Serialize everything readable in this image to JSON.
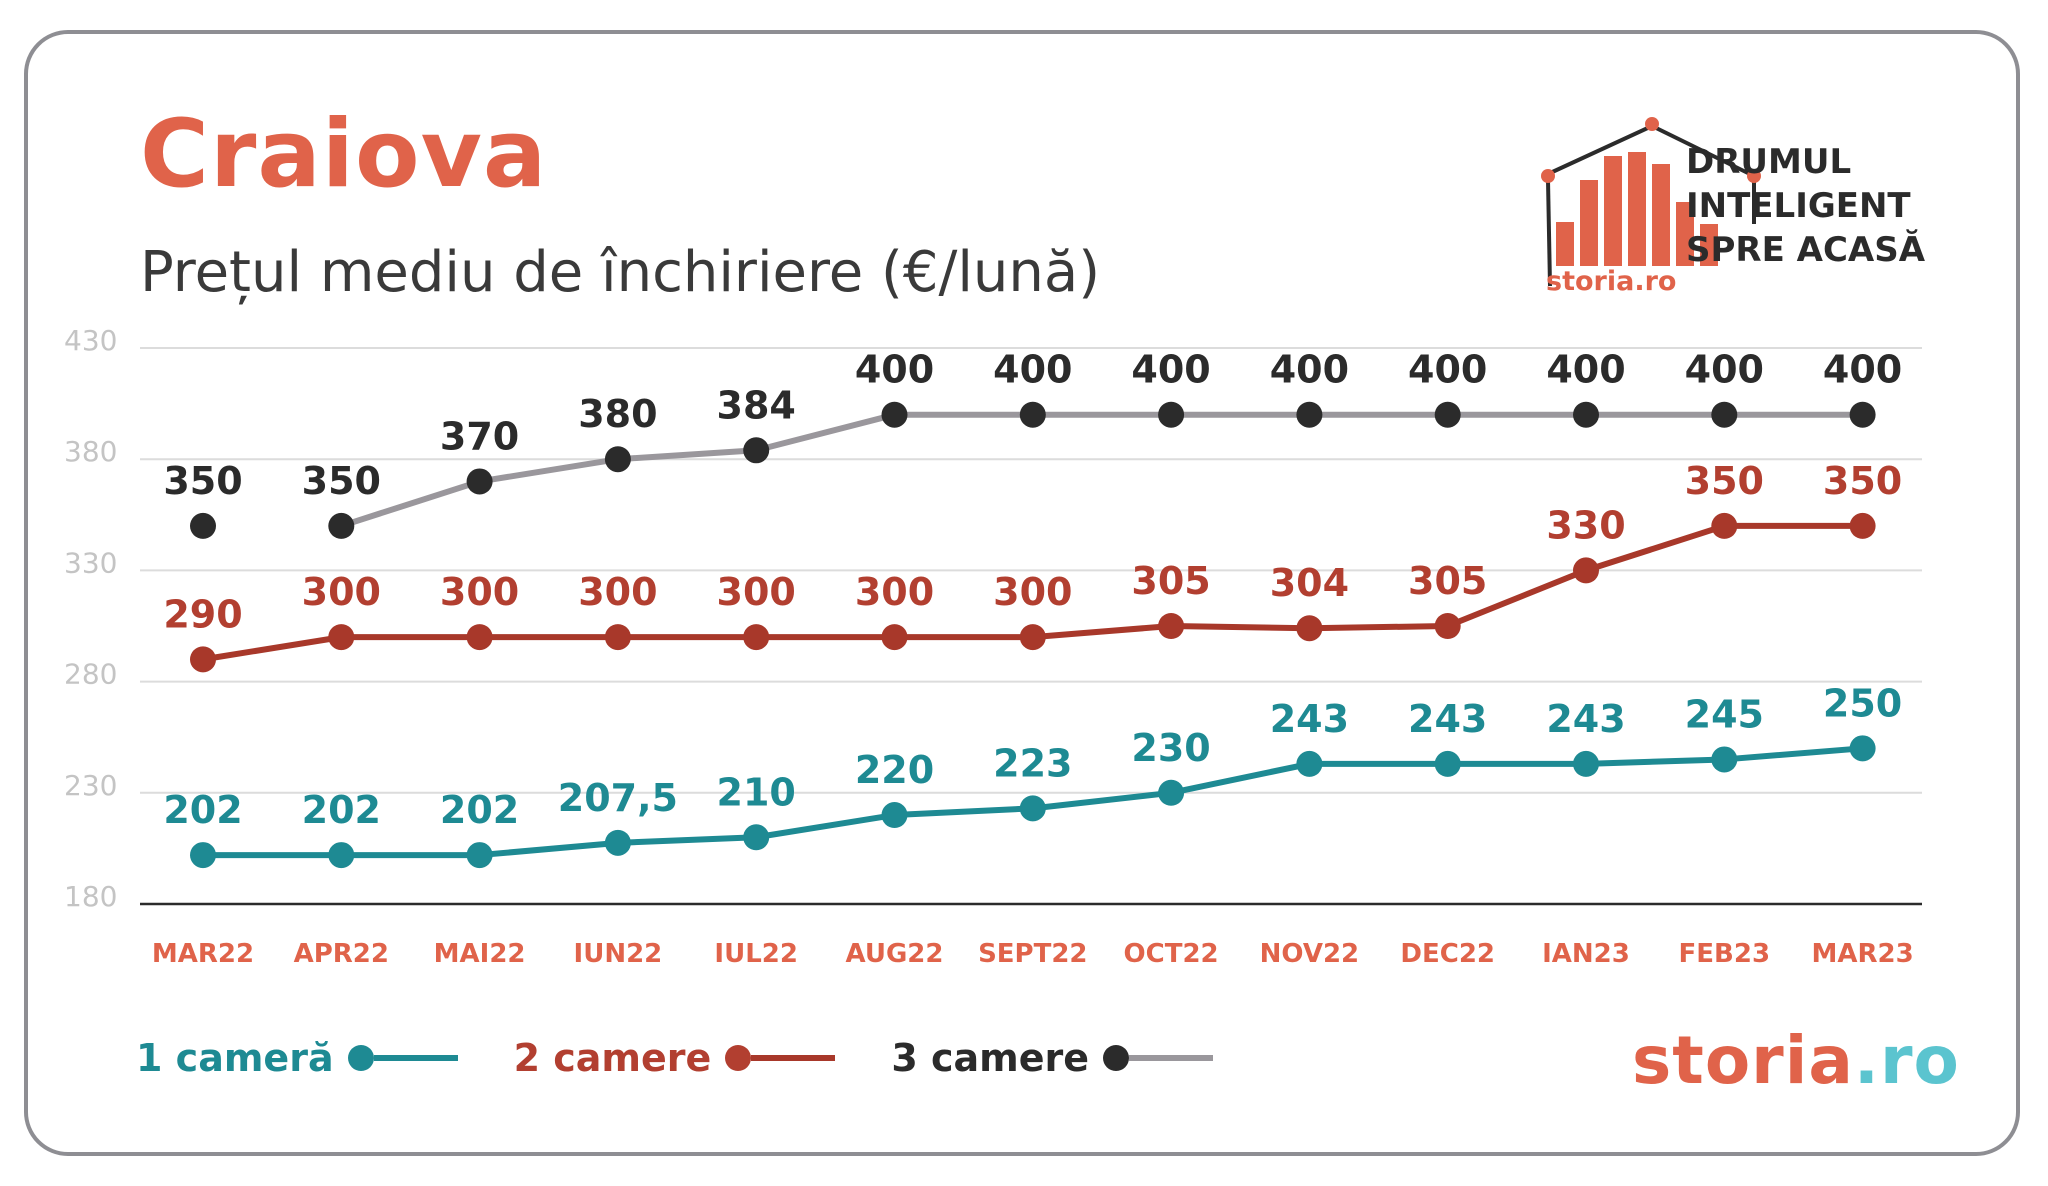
{
  "title": "Craiova",
  "subtitle": "Prețul mediu de închiriere (€/lună)",
  "brand": {
    "tagline": [
      "DRUMUL",
      "INTELIGENT",
      "SPRE ACASĂ"
    ],
    "small_logo_text": "storia.ro",
    "big_logo": {
      "part1": "storia",
      "part2": ".ro"
    },
    "colors": {
      "orange": "#e0634a",
      "teal": "#5bc4cf",
      "dark": "#2b2b2b"
    }
  },
  "legend": [
    {
      "label": "1 cameră",
      "color": "#1e8a93",
      "line_color": "#1e8a93",
      "dot_color": "#1e8a93"
    },
    {
      "label": "2 camere",
      "color": "#b23f30",
      "line_color": "#a8382a",
      "dot_color": "#b23f30"
    },
    {
      "label": "3 camere",
      "color": "#2b2b2b",
      "line_color": "#9a979c",
      "dot_color": "#2b2b2b"
    }
  ],
  "chart_data": {
    "type": "line",
    "categories": [
      "MAR22",
      "APR22",
      "MAI22",
      "IUN22",
      "IUL22",
      "AUG22",
      "SEPT22",
      "OCT22",
      "NOV22",
      "DEC22",
      "IAN23",
      "FEB23",
      "MAR23"
    ],
    "yticks": [
      180,
      230,
      280,
      330,
      380,
      430
    ],
    "ylim": [
      180,
      430
    ],
    "grid": true,
    "legend_position": "bottom-left",
    "series": [
      {
        "name": "1 cameră",
        "values": [
          202,
          202,
          202,
          207.5,
          210,
          220,
          223,
          230,
          243,
          243,
          243,
          245,
          250
        ],
        "labels": [
          "202",
          "202",
          "202",
          "207,5",
          "210",
          "220",
          "223",
          "230",
          "243",
          "243",
          "243",
          "245",
          "250"
        ],
        "line_color": "#1e8a93",
        "dot_color": "#1e8a93",
        "label_color": "#1e8a93",
        "connect_from": 0
      },
      {
        "name": "2 camere",
        "values": [
          290,
          300,
          300,
          300,
          300,
          300,
          300,
          305,
          304,
          305,
          330,
          350,
          350
        ],
        "labels": [
          "290",
          "300",
          "300",
          "300",
          "300",
          "300",
          "300",
          "305",
          "304",
          "305",
          "330",
          "350",
          "350"
        ],
        "line_color": "#a8382a",
        "dot_color": "#a8382a",
        "label_color": "#b23f30",
        "connect_from": 0
      },
      {
        "name": "3 camere",
        "values": [
          350,
          350,
          370,
          380,
          384,
          400,
          400,
          400,
          400,
          400,
          400,
          400,
          400
        ],
        "labels": [
          "350",
          "350",
          "370",
          "380",
          "384",
          "400",
          "400",
          "400",
          "400",
          "400",
          "400",
          "400",
          "400"
        ],
        "line_color": "#9a979c",
        "dot_color": "#2b2b2b",
        "label_color": "#2b2b2b",
        "connect_from": 1
      }
    ]
  }
}
